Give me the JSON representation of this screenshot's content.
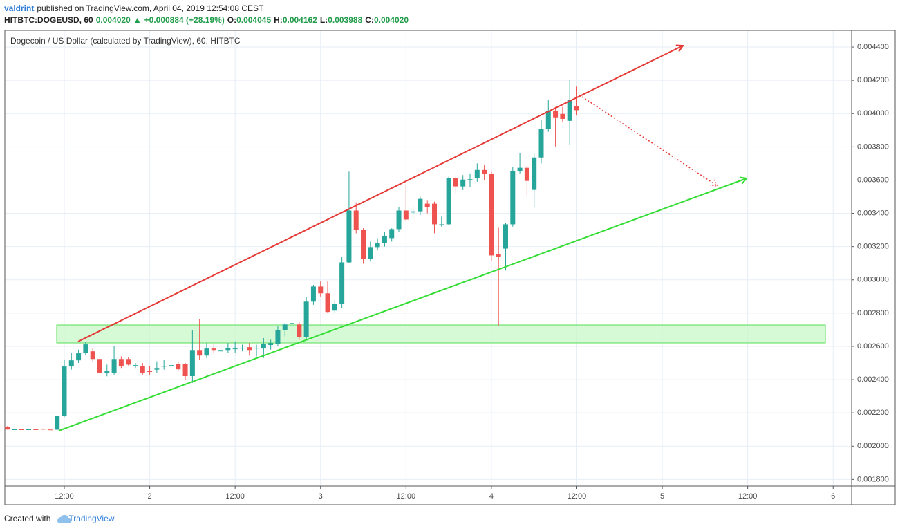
{
  "header": {
    "author": "valdrint",
    "published": "published on TradingView.com, April 04, 2019 12:54:08 CEST",
    "symbol": "HITBTC:DOGEUSD, 60",
    "last": "0.004020",
    "change": "+0.000884 (+28.19%)",
    "open_label": "O:",
    "open": "0.004045",
    "high_label": "H:",
    "high": "0.004162",
    "low_label": "L:",
    "low": "0.003988",
    "close_label": "C:",
    "close": "0.004020"
  },
  "chart_data": {
    "type": "candlestick",
    "title": "Dogecoin / US Dollar (calculated by TradingView), 60, HITBTC",
    "up_color": "#26a69a",
    "down_color": "#ef5350",
    "grid": true,
    "x": [
      4,
      5,
      6,
      7,
      8,
      9,
      10,
      11,
      12,
      13,
      14,
      15,
      16,
      17,
      18,
      19,
      20,
      21,
      22,
      23,
      24,
      25,
      26,
      27,
      28,
      29,
      30,
      31,
      32,
      33,
      34,
      35,
      36,
      37,
      38,
      39,
      40,
      41,
      42,
      43,
      44,
      45,
      46,
      47,
      48,
      49,
      50,
      51,
      52,
      53,
      54,
      55,
      56,
      57,
      58,
      59,
      60,
      61,
      62,
      63,
      64,
      65,
      66,
      67,
      68,
      69,
      70,
      71,
      72,
      73,
      74,
      75,
      76,
      77,
      78,
      79,
      80,
      81,
      82,
      83,
      84
    ],
    "open": [
      0.002115,
      0.002101,
      0.002101,
      0.0021,
      0.002101,
      0.002104,
      0.0021,
      0.002099,
      0.00218,
      0.002479,
      0.002516,
      0.002558,
      0.00257,
      0.002524,
      0.002442,
      0.002442,
      0.002524,
      0.002524,
      0.002483,
      0.002483,
      0.00245,
      0.00246,
      0.002478,
      0.002483,
      0.002495,
      0.002495,
      0.002421,
      0.002578,
      0.002545,
      0.002587,
      0.00257,
      0.002578,
      0.002583,
      0.002587,
      0.002595,
      0.002587,
      0.002587,
      0.002608,
      0.002616,
      0.002699,
      0.002736,
      0.002732,
      0.002657,
      0.002869,
      0.00296,
      0.002919,
      0.002815,
      0.002856,
      0.003105,
      0.003417,
      0.0033,
      0.003126,
      0.003197,
      0.003222,
      0.003251,
      0.003305,
      0.003417,
      0.003405,
      0.003412,
      0.003458,
      0.003458,
      0.00333,
      0.003334,
      0.003612,
      0.003562,
      0.0036,
      0.003612,
      0.003661,
      0.003637,
      0.003155,
      0.003188,
      0.003334,
      0.003653,
      0.003674,
      0.003541,
      0.003736,
      0.003906,
      0.004018,
      0.003998,
      0.003956,
      0.004045
    ],
    "high": [
      0.00212,
      0.002103,
      0.002103,
      0.002104,
      0.002103,
      0.002106,
      0.002102,
      0.00218,
      0.00252,
      0.00256,
      0.00258,
      0.002625,
      0.00259,
      0.002545,
      0.00249,
      0.0026,
      0.00254,
      0.002535,
      0.0025,
      0.0025,
      0.00248,
      0.00251,
      0.00252,
      0.00253,
      0.00251,
      0.0025,
      0.002699,
      0.002765,
      0.00262,
      0.00261,
      0.0026,
      0.00262,
      0.00263,
      0.00261,
      0.00262,
      0.00261,
      0.00265,
      0.00264,
      0.00272,
      0.00274,
      0.002745,
      0.002745,
      0.002898,
      0.00297,
      0.00299,
      0.00299,
      0.00288,
      0.00314,
      0.00365,
      0.003466,
      0.00331,
      0.00323,
      0.00325,
      0.00329,
      0.00331,
      0.00344,
      0.00357,
      0.00344,
      0.0035,
      0.00348,
      0.00347,
      0.00338,
      0.00362,
      0.00363,
      0.00363,
      0.00364,
      0.0037,
      0.00369,
      0.00365,
      0.003313,
      0.00334,
      0.00368,
      0.00376,
      0.00369,
      0.00376,
      0.00396,
      0.00408,
      0.00404,
      0.00404,
      0.004205,
      0.004162
    ],
    "low": [
      0.0021,
      0.002099,
      0.002099,
      0.002099,
      0.002098,
      0.002099,
      0.002097,
      0.002095,
      0.002175,
      0.00246,
      0.0025,
      0.002545,
      0.00251,
      0.0024,
      0.00242,
      0.00243,
      0.00247,
      0.002485,
      0.00247,
      0.00243,
      0.00243,
      0.00244,
      0.00246,
      0.00247,
      0.00245,
      0.0024,
      0.00238,
      0.00252,
      0.00253,
      0.00256,
      0.002555,
      0.00256,
      0.00256,
      0.00257,
      0.002545,
      0.00254,
      0.00253,
      0.00258,
      0.0026,
      0.00266,
      0.0027,
      0.00264,
      0.00264,
      0.00285,
      0.0029,
      0.0028,
      0.0028,
      0.00283,
      0.0031,
      0.00328,
      0.003097,
      0.00311,
      0.00318,
      0.0032,
      0.00323,
      0.00329,
      0.00335,
      0.00339,
      0.00339,
      0.0034,
      0.00328,
      0.00332,
      0.00333,
      0.00352,
      0.00354,
      0.00356,
      0.00359,
      0.0036,
      0.003114,
      0.002724,
      0.003056,
      0.00332,
      0.00364,
      0.0035,
      0.003437,
      0.0037,
      0.00389,
      0.003802,
      0.00395,
      0.00381,
      0.003988
    ],
    "close": [
      0.0021,
      0.002101,
      0.0021,
      0.002101,
      0.0021,
      0.0021,
      0.002099,
      0.00218,
      0.002479,
      0.002516,
      0.002558,
      0.002612,
      0.002524,
      0.002442,
      0.00245,
      0.002524,
      0.002483,
      0.00249,
      0.002487,
      0.002442,
      0.002446,
      0.00247,
      0.002483,
      0.002487,
      0.002462,
      0.002421,
      0.002578,
      0.002545,
      0.002587,
      0.002578,
      0.002578,
      0.00259,
      0.002587,
      0.002591,
      0.002578,
      0.002591,
      0.002616,
      0.00262,
      0.002699,
      0.002732,
      0.00274,
      0.002657,
      0.002869,
      0.00296,
      0.002919,
      0.002807,
      0.002856,
      0.003105,
      0.003417,
      0.0033,
      0.003126,
      0.003197,
      0.003222,
      0.003263,
      0.003305,
      0.003417,
      0.003363,
      0.003412,
      0.003487,
      0.003437,
      0.003334,
      0.003334,
      0.003612,
      0.003562,
      0.003603,
      0.003605,
      0.003661,
      0.003637,
      0.003147,
      0.003139,
      0.003334,
      0.003653,
      0.003674,
      0.003595,
      0.003736,
      0.003906,
      0.004018,
      0.003977,
      0.003968,
      0.00408,
      0.00402
    ],
    "xlim": [
      3.65,
      122.6
    ],
    "xticks": [
      {
        "value": 12,
        "label": "12:00"
      },
      {
        "value": 24,
        "label": "2"
      },
      {
        "value": 36,
        "label": "12:00"
      },
      {
        "value": 48,
        "label": "3"
      },
      {
        "value": 60,
        "label": "12:00"
      },
      {
        "value": 72,
        "label": "4"
      },
      {
        "value": 84,
        "label": "12:00"
      },
      {
        "value": 96,
        "label": "5"
      },
      {
        "value": 108,
        "label": "12:00"
      },
      {
        "value": 120,
        "label": "6"
      }
    ],
    "ylim": [
      0.00176,
      0.0045
    ],
    "yticks": [
      {
        "value": 0.0018,
        "label": "0.001800"
      },
      {
        "value": 0.002,
        "label": "0.002000"
      },
      {
        "value": 0.0022,
        "label": "0.002200"
      },
      {
        "value": 0.0024,
        "label": "0.002400"
      },
      {
        "value": 0.0026,
        "label": "0.002600"
      },
      {
        "value": 0.0028,
        "label": "0.002800"
      },
      {
        "value": 0.003,
        "label": "0.003000"
      },
      {
        "value": 0.0032,
        "label": "0.003200"
      },
      {
        "value": 0.0034,
        "label": "0.003400"
      },
      {
        "value": 0.0036,
        "label": "0.003600"
      },
      {
        "value": 0.0038,
        "label": "0.003800"
      },
      {
        "value": 0.004,
        "label": "0.004000"
      },
      {
        "value": 0.0042,
        "label": "0.004200"
      },
      {
        "value": 0.0044,
        "label": "0.004400"
      }
    ]
  },
  "footer": {
    "created": "Created with",
    "brand": "TradingView"
  }
}
